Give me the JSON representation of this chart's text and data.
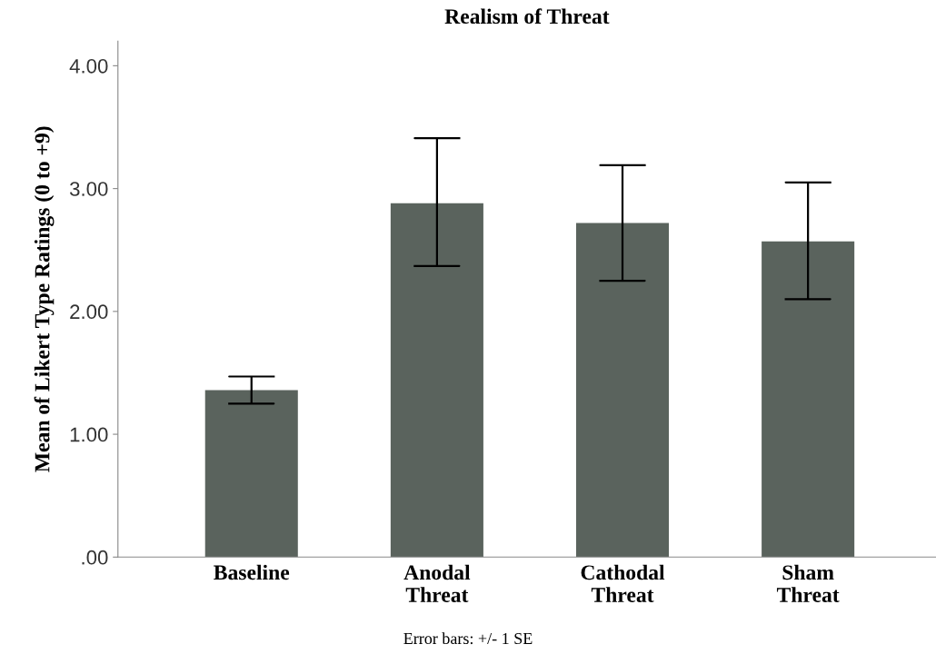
{
  "chart_data": {
    "type": "bar",
    "title": "Realism of Threat",
    "ylabel": "Mean of Likert Type Ratings (0 to +9)",
    "categories": [
      "Baseline",
      "Anodal\nThreat",
      "Cathodal\nThreat",
      "Sham\nThreat"
    ],
    "values": [
      1.36,
      2.88,
      2.72,
      2.57
    ],
    "errors": [
      [
        1.25,
        1.47
      ],
      [
        2.37,
        3.41
      ],
      [
        2.25,
        3.19
      ],
      [
        2.1,
        3.05
      ]
    ],
    "color": "#5a635d",
    "ylim": [
      0,
      4.2
    ],
    "yticks": [
      {
        "value": 0,
        "label": ".00"
      },
      {
        "value": 1,
        "label": "1.00"
      },
      {
        "value": 2,
        "label": "2.00"
      },
      {
        "value": 3,
        "label": "3.00"
      },
      {
        "value": 4,
        "label": "4.00"
      }
    ],
    "grid": false,
    "legend": false,
    "annotations": [
      "Error bars: +/- 1 SE"
    ]
  }
}
